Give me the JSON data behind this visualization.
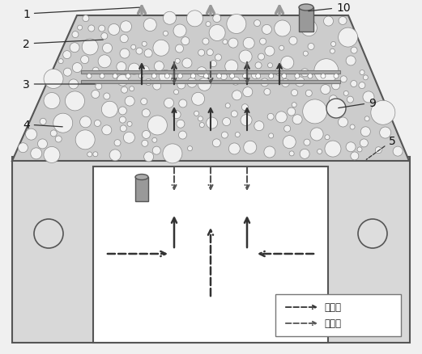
{
  "fig_width": 5.21,
  "fig_height": 4.39,
  "dpi": 100,
  "bg_color": "#f0f0f0",
  "legend_hot": "热空气",
  "legend_cold": "冷空气",
  "dark": "#333333",
  "gray": "#888888"
}
